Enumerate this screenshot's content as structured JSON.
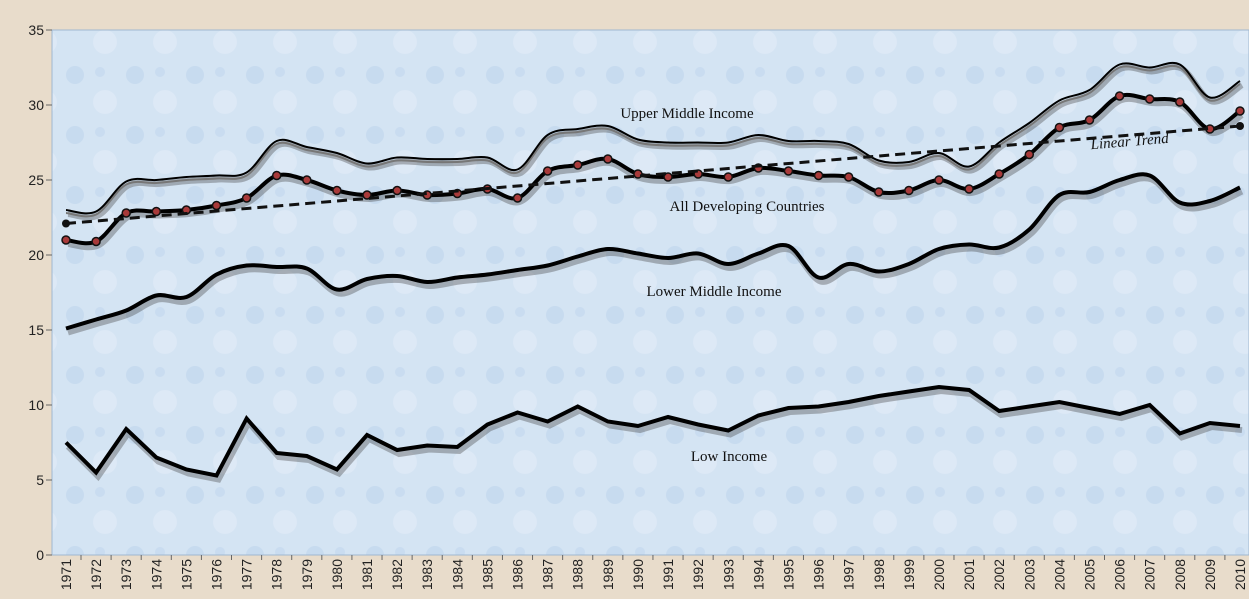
{
  "chart_data": {
    "type": "line",
    "categories": [
      "1971",
      "1972",
      "1973",
      "1974",
      "1975",
      "1976",
      "1977",
      "1978",
      "1979",
      "1980",
      "1981",
      "1982",
      "1983",
      "1984",
      "1985",
      "1986",
      "1987",
      "1988",
      "1989",
      "1990",
      "1991",
      "1992",
      "1993",
      "1994",
      "1995",
      "1996",
      "1997",
      "1998",
      "1999",
      "2000",
      "2001",
      "2002",
      "2003",
      "2004",
      "2005",
      "2006",
      "2007",
      "2008",
      "2009",
      "2010"
    ],
    "series": [
      {
        "name": "Upper Middle Income",
        "color": "#000000",
        "smooth": true,
        "values": [
          23.0,
          22.9,
          24.9,
          25.0,
          25.2,
          25.3,
          25.5,
          27.6,
          27.2,
          26.8,
          26.1,
          26.5,
          26.4,
          26.4,
          26.5,
          25.7,
          28.0,
          28.4,
          28.6,
          27.7,
          27.5,
          27.5,
          27.5,
          28.0,
          27.6,
          27.6,
          27.4,
          26.3,
          26.2,
          26.8,
          25.9,
          27.5,
          28.8,
          30.3,
          31.0,
          32.7,
          32.5,
          32.7,
          30.5,
          31.6
        ]
      },
      {
        "name": "All Developing Countries",
        "color": "#000000",
        "smooth": true,
        "markers": true,
        "values": [
          21.0,
          20.9,
          22.8,
          22.9,
          23.0,
          23.3,
          23.8,
          25.3,
          25.0,
          24.3,
          24.0,
          24.3,
          24.0,
          24.1,
          24.4,
          23.8,
          25.6,
          26.0,
          26.4,
          25.4,
          25.2,
          25.4,
          25.2,
          25.8,
          25.6,
          25.3,
          25.2,
          24.2,
          24.3,
          25.0,
          24.4,
          25.4,
          26.7,
          28.5,
          29.0,
          30.6,
          30.4,
          30.2,
          28.4,
          29.6
        ]
      },
      {
        "name": "Lower Middle Income",
        "color": "#000000",
        "smooth": true,
        "values": [
          15.1,
          15.7,
          16.3,
          17.3,
          17.2,
          18.7,
          19.3,
          19.2,
          19.1,
          17.7,
          18.4,
          18.6,
          18.2,
          18.5,
          18.7,
          19.0,
          19.3,
          19.9,
          20.4,
          20.1,
          19.8,
          20.1,
          19.4,
          20.1,
          20.6,
          18.5,
          19.4,
          18.9,
          19.4,
          20.4,
          20.7,
          20.5,
          21.7,
          24.0,
          24.2,
          25.0,
          25.3,
          23.5,
          23.6,
          24.5
        ]
      },
      {
        "name": "Low Income",
        "color": "#000000",
        "smooth": false,
        "values": [
          7.5,
          5.5,
          8.4,
          6.5,
          5.7,
          5.3,
          9.1,
          6.8,
          6.6,
          5.7,
          8.0,
          7.0,
          7.3,
          7.2,
          8.7,
          9.5,
          8.9,
          9.9,
          8.9,
          8.6,
          9.2,
          8.7,
          8.3,
          9.3,
          9.8,
          9.9,
          10.2,
          10.6,
          10.9,
          11.2,
          11.0,
          9.6,
          9.9,
          10.2,
          9.8,
          9.4,
          10.0,
          8.1,
          8.8,
          8.6
        ]
      }
    ],
    "trend": {
      "name": "Linear Trend",
      "values": [
        22.1,
        28.6
      ]
    },
    "ylim": [
      0,
      35
    ],
    "yticks": [
      0,
      5,
      10,
      15,
      20,
      25,
      30,
      35
    ]
  }
}
